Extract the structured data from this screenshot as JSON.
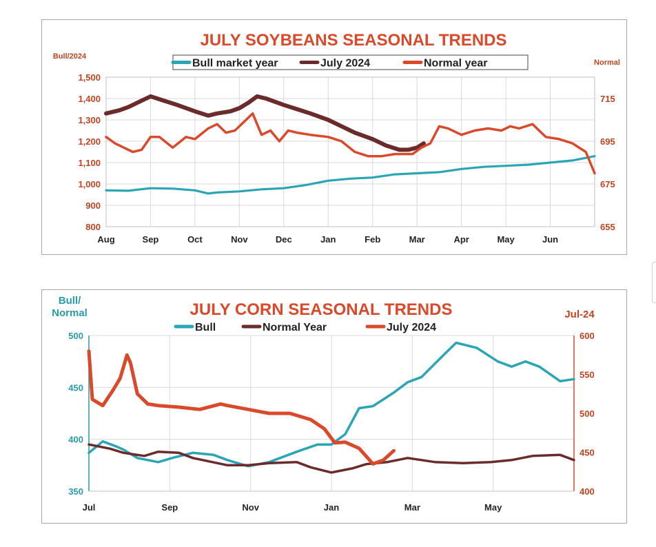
{
  "chart_data": [
    {
      "type": "line",
      "title": "JULY SOYBEANS SEASONAL TRENDS",
      "ylabel_left": "Bull/2024",
      "ylabel_right": "Normal",
      "categories": [
        "Aug",
        "Sep",
        "Oct",
        "Nov",
        "Dec",
        "Jan",
        "Feb",
        "Mar",
        "Apr",
        "May",
        "Jun"
      ],
      "ylim_left": [
        800,
        1500
      ],
      "ylim_right": [
        655,
        725
      ],
      "yticks_left": [
        "800",
        "900",
        "1,000",
        "1,100",
        "1,200",
        "1,300",
        "1,400",
        "1,500"
      ],
      "yticks_right": [
        "655",
        "675",
        "695",
        "715"
      ],
      "legend": [
        "Bull market year",
        "July 2024",
        "Normal year"
      ],
      "series": [
        {
          "name": "Bull market year",
          "axis": "left",
          "color": "#2aa5b5",
          "x": [
            0,
            0.5,
            1,
            1.5,
            2,
            2.3,
            2.5,
            3,
            3.5,
            4,
            4.5,
            5,
            5.5,
            6,
            6.5,
            7,
            7.5,
            8,
            8.5,
            9,
            9.5,
            10,
            10.5,
            11
          ],
          "y": [
            970,
            968,
            980,
            978,
            970,
            955,
            960,
            965,
            975,
            980,
            995,
            1015,
            1025,
            1030,
            1045,
            1050,
            1055,
            1070,
            1080,
            1085,
            1090,
            1100,
            1110,
            1130
          ]
        },
        {
          "name": "July 2024",
          "axis": "left",
          "color": "#6b2b2b",
          "x": [
            0,
            0.3,
            0.5,
            0.8,
            1,
            1.3,
            1.6,
            2,
            2.3,
            2.5,
            2.8,
            3,
            3.2,
            3.4,
            3.6,
            4,
            4.3,
            4.6,
            5,
            5.3,
            5.6,
            6,
            6.3,
            6.6,
            6.8,
            7,
            7.15
          ],
          "y": [
            1330,
            1345,
            1360,
            1390,
            1410,
            1390,
            1370,
            1340,
            1320,
            1330,
            1340,
            1355,
            1380,
            1410,
            1400,
            1370,
            1350,
            1330,
            1300,
            1270,
            1240,
            1210,
            1180,
            1160,
            1160,
            1170,
            1190
          ]
        },
        {
          "name": "Normal year",
          "axis": "right",
          "color": "#d9492a",
          "x": [
            0,
            0.2,
            0.4,
            0.6,
            0.8,
            1,
            1.2,
            1.5,
            1.8,
            2,
            2.3,
            2.5,
            2.7,
            2.9,
            3.1,
            3.3,
            3.5,
            3.7,
            3.9,
            4.1,
            4.3,
            4.6,
            5,
            5.3,
            5.6,
            5.9,
            6.2,
            6.5,
            6.9,
            7.1,
            7.3,
            7.5,
            7.7,
            8,
            8.3,
            8.6,
            8.9,
            9.1,
            9.3,
            9.6,
            9.9,
            10.2,
            10.5,
            10.8,
            11
          ],
          "y": [
            697,
            694,
            692,
            690,
            691,
            697,
            697,
            692,
            697,
            696,
            701,
            703,
            699,
            700,
            704,
            708,
            698,
            700,
            695,
            700,
            699,
            698,
            697,
            695,
            690,
            688,
            688,
            689,
            689,
            692,
            694,
            702,
            701,
            698,
            700,
            701,
            700,
            702,
            701,
            703,
            697,
            696,
            694,
            690,
            680
          ]
        }
      ]
    },
    {
      "type": "line",
      "title": "JULY CORN SEASONAL TRENDS",
      "ylabel_left": "Bull/ Normal",
      "ylabel_right": "Jul-24",
      "categories": [
        "Jul",
        "Sep",
        "Nov",
        "Jan",
        "Mar",
        "May"
      ],
      "ylim_left": [
        350,
        500
      ],
      "ylim_right": [
        400,
        600
      ],
      "yticks_left": [
        "350",
        "400",
        "450",
        "500"
      ],
      "yticks_right": [
        "400",
        "450",
        "500",
        "550",
        "600"
      ],
      "legend": [
        "Bull",
        "Normal Year",
        "July 2024"
      ],
      "series": [
        {
          "name": "Bull",
          "axis": "left",
          "color": "#2aa5b5",
          "x": [
            0,
            0.2,
            0.4,
            0.5,
            0.7,
            1,
            1.2,
            1.5,
            1.8,
            2,
            2.3,
            2.6,
            3,
            3.3,
            3.5,
            3.7,
            3.9,
            4.1,
            4.4,
            4.6,
            4.8,
            5.1,
            5.3,
            5.6,
            5.9,
            6.1,
            6.3,
            6.5,
            6.8,
            7
          ],
          "y": [
            387,
            398,
            393,
            390,
            382,
            378,
            382,
            387,
            385,
            380,
            374,
            378,
            388,
            395,
            395,
            405,
            430,
            432,
            445,
            455,
            460,
            480,
            493,
            488,
            475,
            470,
            475,
            470,
            456,
            458
          ]
        },
        {
          "name": "Normal Year",
          "axis": "left",
          "color": "#6b2b2b",
          "x": [
            0,
            0.3,
            0.5,
            0.8,
            1,
            1.3,
            1.5,
            2,
            2.3,
            2.6,
            3,
            3.2,
            3.5,
            3.8,
            4,
            4.3,
            4.6,
            5,
            5.4,
            5.8,
            6.1,
            6.4,
            6.8,
            7
          ],
          "y": [
            395,
            391,
            387,
            384,
            388,
            387,
            382,
            375,
            375,
            377,
            378,
            373,
            368,
            372,
            376,
            378,
            382,
            378,
            377,
            378,
            380,
            384,
            385,
            380
          ]
        },
        {
          "name": "July 2024",
          "axis": "right",
          "color": "#d9492a",
          "x": [
            0,
            0.05,
            0.2,
            0.35,
            0.45,
            0.55,
            0.6,
            0.7,
            0.85,
            1,
            1.3,
            1.6,
            1.9,
            2,
            2.3,
            2.6,
            2.9,
            3.2,
            3.4,
            3.55,
            3.7,
            3.9,
            4.1,
            4.25,
            4.4
          ],
          "y": [
            580,
            518,
            510,
            530,
            545,
            575,
            565,
            525,
            512,
            510,
            508,
            505,
            512,
            510,
            505,
            500,
            500,
            492,
            480,
            462,
            463,
            455,
            435,
            440,
            452
          ]
        }
      ]
    }
  ]
}
